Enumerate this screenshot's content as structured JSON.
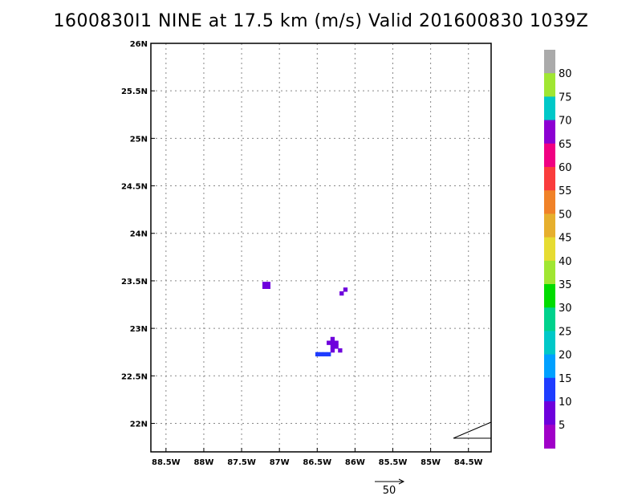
{
  "title": "1600830I1 NINE at 17.5 km (m/s) Valid 201600830 1039Z",
  "chart_data": {
    "type": "heatmap",
    "title": "1600830I1 NINE at 17.5 km (m/s) Valid 201600830 1039Z",
    "xlabel": "",
    "ylabel": "",
    "xlim": [
      -88.7,
      -84.2
    ],
    "ylim": [
      21.7,
      26.0
    ],
    "grid": true,
    "x_ticks": [
      -88.5,
      -88,
      -87.5,
      -87,
      -86.5,
      -86,
      -85.5,
      -85,
      -84.5
    ],
    "x_tick_labels": [
      "88.5W",
      "88W",
      "87.5W",
      "87W",
      "86.5W",
      "86W",
      "85.5W",
      "85W",
      "84.5W"
    ],
    "y_ticks": [
      22,
      22.5,
      23,
      23.5,
      24,
      24.5,
      25,
      25.5,
      26
    ],
    "y_tick_labels": [
      "22N",
      "22.5N",
      "23N",
      "23.5N",
      "24N",
      "24.5N",
      "25N",
      "25.5N",
      "26N"
    ],
    "colorbar": {
      "levels": [
        5,
        10,
        15,
        20,
        25,
        30,
        35,
        40,
        45,
        50,
        55,
        60,
        65,
        70,
        75,
        80
      ],
      "colors": [
        "#a000c8",
        "#6e00dc",
        "#1e3cff",
        "#00a0ff",
        "#00c8c8",
        "#00d28c",
        "#00dc00",
        "#a0e632",
        "#e6dc32",
        "#e6af2d",
        "#f08228",
        "#fa3c3c",
        "#f00082",
        "#8c00d2",
        "#00c8c8",
        "#a0e632",
        "#aaaaaa"
      ]
    },
    "cells": [
      {
        "lon": -87.2,
        "lat": 23.47,
        "value": 5
      },
      {
        "lon": -87.15,
        "lat": 23.47,
        "value": 5
      },
      {
        "lon": -87.2,
        "lat": 23.44,
        "value": 5
      },
      {
        "lon": -87.15,
        "lat": 23.44,
        "value": 5
      },
      {
        "lon": -86.13,
        "lat": 23.41,
        "value": 5
      },
      {
        "lon": -86.18,
        "lat": 23.37,
        "value": 5
      },
      {
        "lon": -86.3,
        "lat": 22.89,
        "value": 5
      },
      {
        "lon": -86.35,
        "lat": 22.85,
        "value": 5
      },
      {
        "lon": -86.3,
        "lat": 22.85,
        "value": 5
      },
      {
        "lon": -86.25,
        "lat": 22.85,
        "value": 5
      },
      {
        "lon": -86.3,
        "lat": 22.81,
        "value": 5
      },
      {
        "lon": -86.25,
        "lat": 22.81,
        "value": 5
      },
      {
        "lon": -86.3,
        "lat": 22.77,
        "value": 5
      },
      {
        "lon": -86.2,
        "lat": 22.77,
        "value": 5
      },
      {
        "lon": -86.5,
        "lat": 22.73,
        "value": 10
      },
      {
        "lon": -86.45,
        "lat": 22.73,
        "value": 10
      },
      {
        "lon": -86.4,
        "lat": 22.73,
        "value": 10
      },
      {
        "lon": -86.35,
        "lat": 22.73,
        "value": 10
      }
    ],
    "vector_reference": {
      "value": 50,
      "label": "50"
    }
  }
}
